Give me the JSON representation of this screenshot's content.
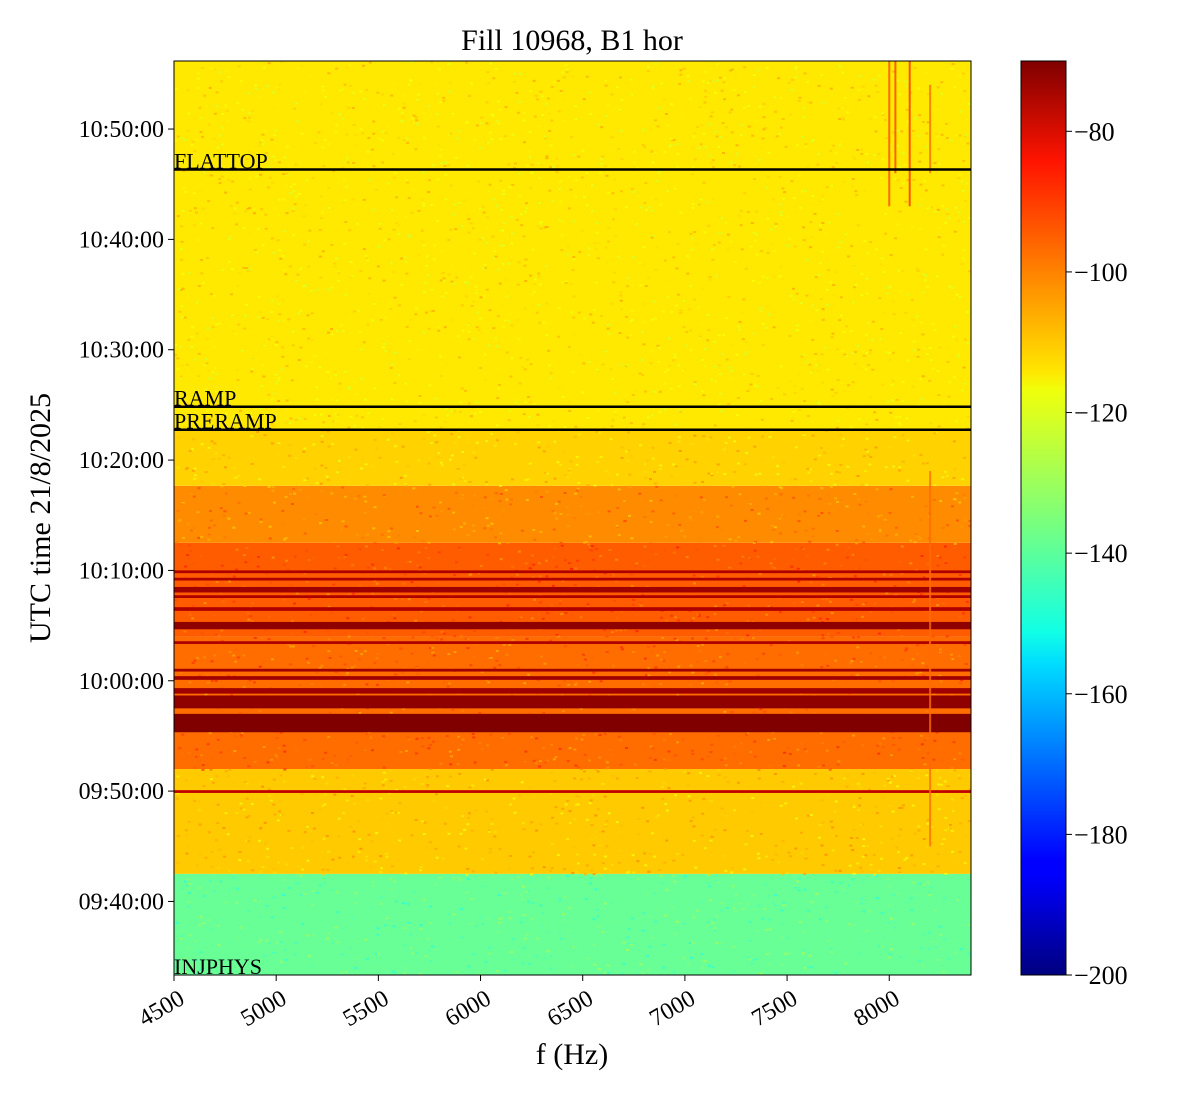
{
  "chart_data": {
    "type": "heatmap",
    "title": "Fill 10968, B1 hor",
    "xlabel": "f (Hz)",
    "ylabel": "UTC time 21/8/2025",
    "xlim": [
      4500,
      8400
    ],
    "ylim": [
      "09:33:20",
      "10:56:10"
    ],
    "x_ticks": [
      4500,
      5000,
      5500,
      6000,
      6500,
      7000,
      7500,
      8000
    ],
    "x_tick_labels": [
      "4500",
      "5000",
      "5500",
      "6000",
      "6500",
      "7000",
      "7500",
      "8000"
    ],
    "y_ticks": [
      "09:40:00",
      "09:50:00",
      "10:00:00",
      "10:10:00",
      "10:20:00",
      "10:30:00",
      "10:40:00",
      "10:50:00"
    ],
    "colorbar": {
      "colormap": "jet",
      "vmin": -200,
      "vmax": -70,
      "ticks": [
        -80,
        -100,
        -120,
        -140,
        -160,
        -180,
        -200
      ],
      "tick_labels": [
        "−80",
        "−100",
        "−120",
        "−140",
        "−160",
        "−180",
        "−200"
      ]
    },
    "beam_modes": [
      {
        "label": "FLATTOP",
        "time": "10:46:20"
      },
      {
        "label": "RAMP",
        "time": "10:24:50"
      },
      {
        "label": "PRERAMP",
        "time": "10:22:45"
      },
      {
        "label": "INJPHYS",
        "time": "09:33:20"
      }
    ],
    "regions": [
      {
        "from": "09:33:20",
        "to": "09:42:30",
        "level": -138
      },
      {
        "from": "09:42:30",
        "to": "09:52:00",
        "level": -112
      },
      {
        "from": "09:52:00",
        "to": "10:04:00",
        "level": -100
      },
      {
        "from": "10:04:00",
        "to": "10:12:30",
        "level": -98
      },
      {
        "from": "10:12:30",
        "to": "10:17:40",
        "level": -104
      },
      {
        "from": "10:17:40",
        "to": "10:22:45",
        "level": -113
      },
      {
        "from": "10:22:45",
        "to": "10:56:10",
        "level": -116
      }
    ],
    "strong_bands": [
      {
        "from": "09:55:20",
        "to": "09:57:00",
        "level": -70
      },
      {
        "from": "09:57:30",
        "to": "09:58:40",
        "level": -72
      },
      {
        "from": "09:58:50",
        "to": "09:59:20",
        "level": -74
      },
      {
        "from": "10:00:05",
        "to": "10:00:25",
        "level": -74
      },
      {
        "from": "10:00:50",
        "to": "10:01:05",
        "level": -74
      },
      {
        "from": "10:03:20",
        "to": "10:03:35",
        "level": -76
      },
      {
        "from": "10:04:40",
        "to": "10:05:20",
        "level": -72
      },
      {
        "from": "10:06:20",
        "to": "10:06:40",
        "level": -76
      },
      {
        "from": "10:07:30",
        "to": "10:07:45",
        "level": -76
      },
      {
        "from": "10:08:00",
        "to": "10:08:30",
        "level": -74
      },
      {
        "from": "10:09:05",
        "to": "10:09:20",
        "level": -76
      },
      {
        "from": "10:09:45",
        "to": "10:10:00",
        "level": -76
      },
      {
        "from": "09:49:50",
        "to": "09:50:05",
        "level": -78
      }
    ],
    "vertical_lines": [
      {
        "f": 8000,
        "from": "10:43:00",
        "to": "10:56:10",
        "level": -96
      },
      {
        "f": 8030,
        "from": "10:46:00",
        "to": "10:56:10",
        "level": -94
      },
      {
        "f": 8100,
        "from": "10:43:00",
        "to": "10:56:10",
        "level": -92
      },
      {
        "f": 8200,
        "from": "10:46:00",
        "to": "10:54:00",
        "level": -100
      },
      {
        "f": 8200,
        "from": "09:45:00",
        "to": "10:19:00",
        "level": -100
      }
    ]
  }
}
